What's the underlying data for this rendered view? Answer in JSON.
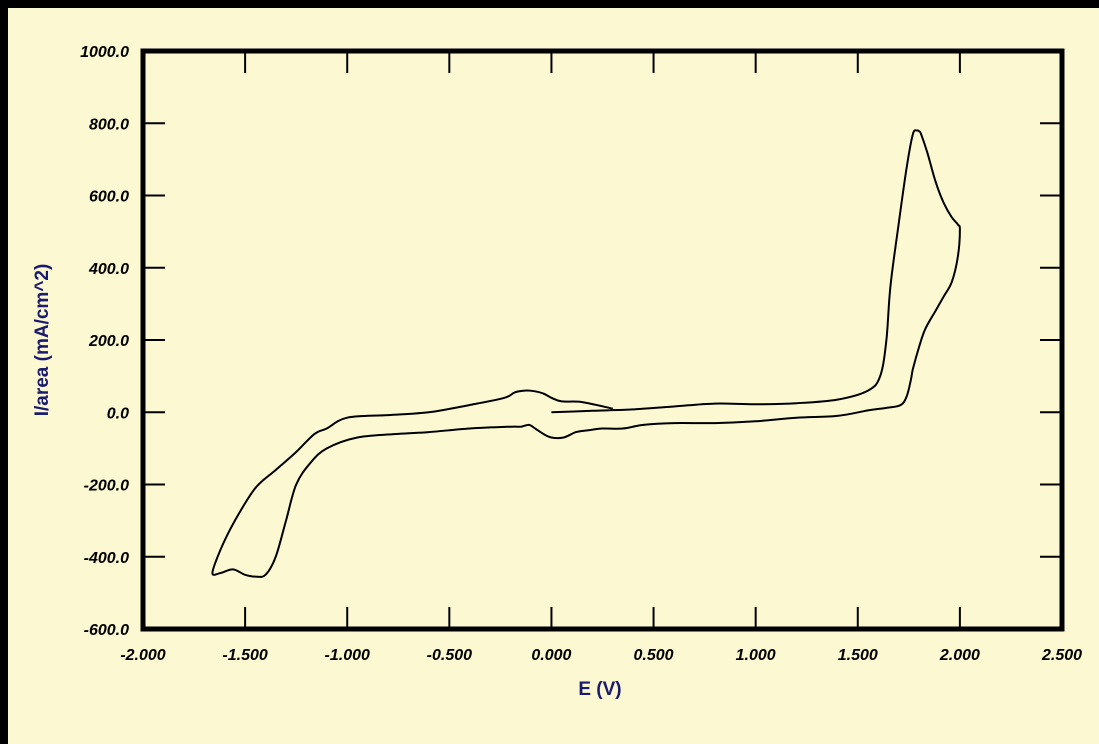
{
  "colors": {
    "page_background": "#fbf8d2",
    "border": "#000000",
    "curve": "#000000",
    "axis_title": "#1a1a6e"
  },
  "chart_data": {
    "type": "line",
    "title": "",
    "xlabel": "E (V)",
    "ylabel": "I/area  (mA/cm^2)",
    "xlim": [
      -2.0,
      2.5
    ],
    "ylim": [
      -600.0,
      1000.0
    ],
    "grid": false,
    "legend": "none",
    "x_ticks": [
      -2.0,
      -1.5,
      -1.0,
      -0.5,
      0.0,
      0.5,
      1.0,
      1.5,
      2.0,
      2.5
    ],
    "x_tick_labels": [
      "-2.000",
      "-1.500",
      "-1.000",
      "-0.500",
      "0.000",
      "0.500",
      "1.000",
      "1.500",
      "2.000",
      "2.500"
    ],
    "y_ticks": [
      -600,
      -400,
      -200,
      0,
      200,
      400,
      600,
      800,
      1000
    ],
    "y_tick_labels": [
      "-600.0",
      "-400.0",
      "-200.0",
      "0.0",
      "200.0",
      "400.0",
      "600.0",
      "800.0",
      "1000.0"
    ],
    "series": [
      {
        "x": [
          0.0,
          0.2,
          0.4,
          0.6,
          0.8,
          1.0,
          1.2,
          1.4,
          1.55,
          1.61,
          1.64,
          1.66,
          1.7,
          1.74,
          1.77,
          1.79,
          1.8,
          1.81,
          1.84,
          1.88,
          1.92,
          1.96,
          1.99,
          2.0,
          1.99,
          1.96,
          1.92,
          1.88,
          1.83,
          1.8,
          1.77,
          1.76,
          1.74,
          1.71,
          1.64,
          1.55,
          1.4,
          1.2,
          1.0,
          0.8,
          0.6,
          0.45,
          0.35,
          0.25,
          0.18,
          0.12,
          0.06,
          0.0,
          -0.04,
          -0.08,
          -0.11,
          -0.15,
          -0.2,
          -0.4,
          -0.6,
          -0.75,
          -0.95,
          -1.1,
          -1.18,
          -1.25,
          -1.3,
          -1.35,
          -1.4,
          -1.45,
          -1.5,
          -1.56,
          -1.62,
          -1.66,
          -1.62,
          -1.55,
          -1.45,
          -1.35,
          -1.25,
          -1.16,
          -1.1,
          -1.0,
          -0.8,
          -0.6,
          -0.4,
          -0.23,
          -0.18,
          -0.13,
          -0.08,
          -0.04,
          0.0,
          0.05,
          0.15,
          0.3
        ],
        "y": [
          0,
          4,
          8,
          16,
          24,
          22,
          25,
          35,
          60,
          100,
          200,
          350,
          520,
          680,
          770,
          780,
          778,
          770,
          720,
          640,
          580,
          540,
          520,
          505,
          430,
          360,
          320,
          280,
          230,
          180,
          120,
          90,
          45,
          20,
          12,
          5,
          -10,
          -15,
          -25,
          -30,
          -30,
          -35,
          -45,
          -45,
          -50,
          -55,
          -70,
          -70,
          -60,
          -45,
          -35,
          -40,
          -40,
          -45,
          -55,
          -60,
          -70,
          -100,
          -140,
          -200,
          -300,
          -400,
          -450,
          -455,
          -450,
          -435,
          -445,
          -445,
          -380,
          -300,
          -210,
          -160,
          -110,
          -60,
          -45,
          -15,
          -8,
          0,
          20,
          40,
          55,
          60,
          58,
          52,
          40,
          30,
          28,
          10
        ]
      }
    ]
  }
}
